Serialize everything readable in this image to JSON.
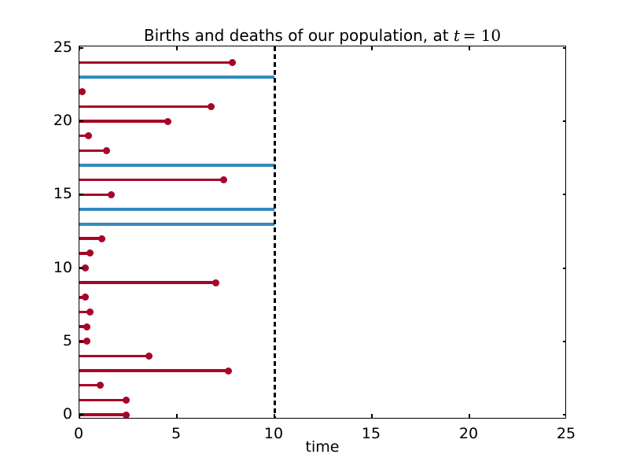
{
  "figure": {
    "title_prefix": "Births and deaths of our population, at ",
    "title_var": "t",
    "title_eq": "= 10",
    "xlabel": "time"
  },
  "chart_data": {
    "type": "stem-horizontal",
    "title": "Births and deaths of our population, at t = 10",
    "xlabel": "time",
    "ylabel": "",
    "xlim": [
      0,
      25
    ],
    "ylim": [
      0,
      25
    ],
    "x_ticks": [
      0,
      5,
      10,
      15,
      20,
      25
    ],
    "y_ticks": [
      0,
      5,
      10,
      15,
      20,
      25
    ],
    "x_tick_labels": [
      "0",
      "5",
      "10",
      "15",
      "20",
      "25"
    ],
    "y_tick_labels": [
      "0",
      "5",
      "10",
      "15",
      "20",
      "25"
    ],
    "current_time": 10,
    "grid": false,
    "legend": false,
    "colors": {
      "death": "#A60628",
      "alive": "#348ABD",
      "now_line": "#000000",
      "background": "#ffffff"
    },
    "individuals": [
      {
        "id": 0,
        "status": "dead",
        "end": 2.4
      },
      {
        "id": 1,
        "status": "dead",
        "end": 2.4
      },
      {
        "id": 2,
        "status": "dead",
        "end": 1.05
      },
      {
        "id": 3,
        "status": "dead",
        "end": 7.65
      },
      {
        "id": 4,
        "status": "dead",
        "end": 3.55
      },
      {
        "id": 5,
        "status": "dead",
        "end": 0.4
      },
      {
        "id": 6,
        "status": "dead",
        "end": 0.4
      },
      {
        "id": 7,
        "status": "dead",
        "end": 0.55
      },
      {
        "id": 8,
        "status": "dead",
        "end": 0.3
      },
      {
        "id": 9,
        "status": "dead",
        "end": 7.0
      },
      {
        "id": 10,
        "status": "dead",
        "end": 0.3
      },
      {
        "id": 11,
        "status": "dead",
        "end": 0.55
      },
      {
        "id": 12,
        "status": "dead",
        "end": 1.15
      },
      {
        "id": 13,
        "status": "alive",
        "end": 10
      },
      {
        "id": 14,
        "status": "alive",
        "end": 10
      },
      {
        "id": 15,
        "status": "dead",
        "end": 1.65
      },
      {
        "id": 16,
        "status": "dead",
        "end": 7.4
      },
      {
        "id": 17,
        "status": "alive",
        "end": 10
      },
      {
        "id": 18,
        "status": "dead",
        "end": 1.4
      },
      {
        "id": 19,
        "status": "dead",
        "end": 0.45
      },
      {
        "id": 20,
        "status": "dead",
        "end": 4.55
      },
      {
        "id": 21,
        "status": "dead",
        "end": 6.75
      },
      {
        "id": 22,
        "status": "dead",
        "end": 0.15
      },
      {
        "id": 23,
        "status": "alive",
        "end": 10
      },
      {
        "id": 24,
        "status": "dead",
        "end": 7.85
      }
    ]
  }
}
